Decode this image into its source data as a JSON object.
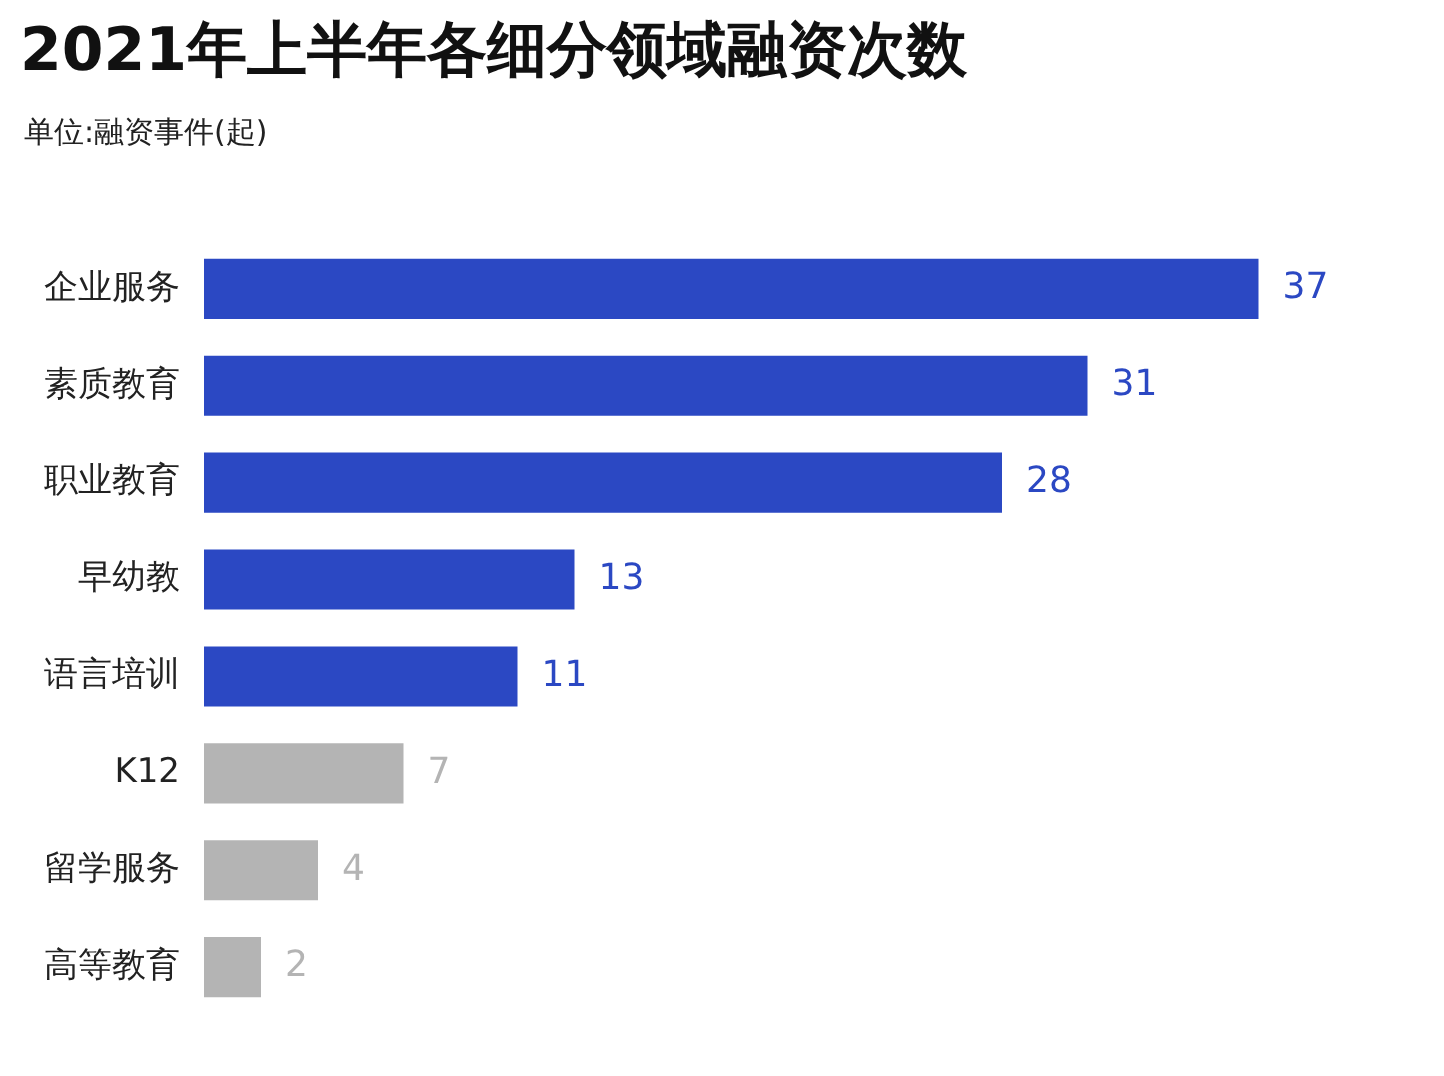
{
  "chart_data": {
    "type": "bar",
    "orientation": "horizontal",
    "title": "2021年上半年各细分领域融资次数",
    "subtitle": "单位:融资事件(起)",
    "categories": [
      "企业服务",
      "素质教育",
      "职业教育",
      "早幼教",
      "语言培训",
      "K12",
      "留学服务",
      "高等教育"
    ],
    "values": [
      37,
      31,
      28,
      13,
      11,
      7,
      4,
      2
    ],
    "colors": [
      "#2b48c3",
      "#2b48c3",
      "#2b48c3",
      "#2b48c3",
      "#2b48c3",
      "#b4b4b4",
      "#b4b4b4",
      "#b4b4b4"
    ],
    "data_labels": true,
    "tick_labels": "y",
    "legend": false
  }
}
